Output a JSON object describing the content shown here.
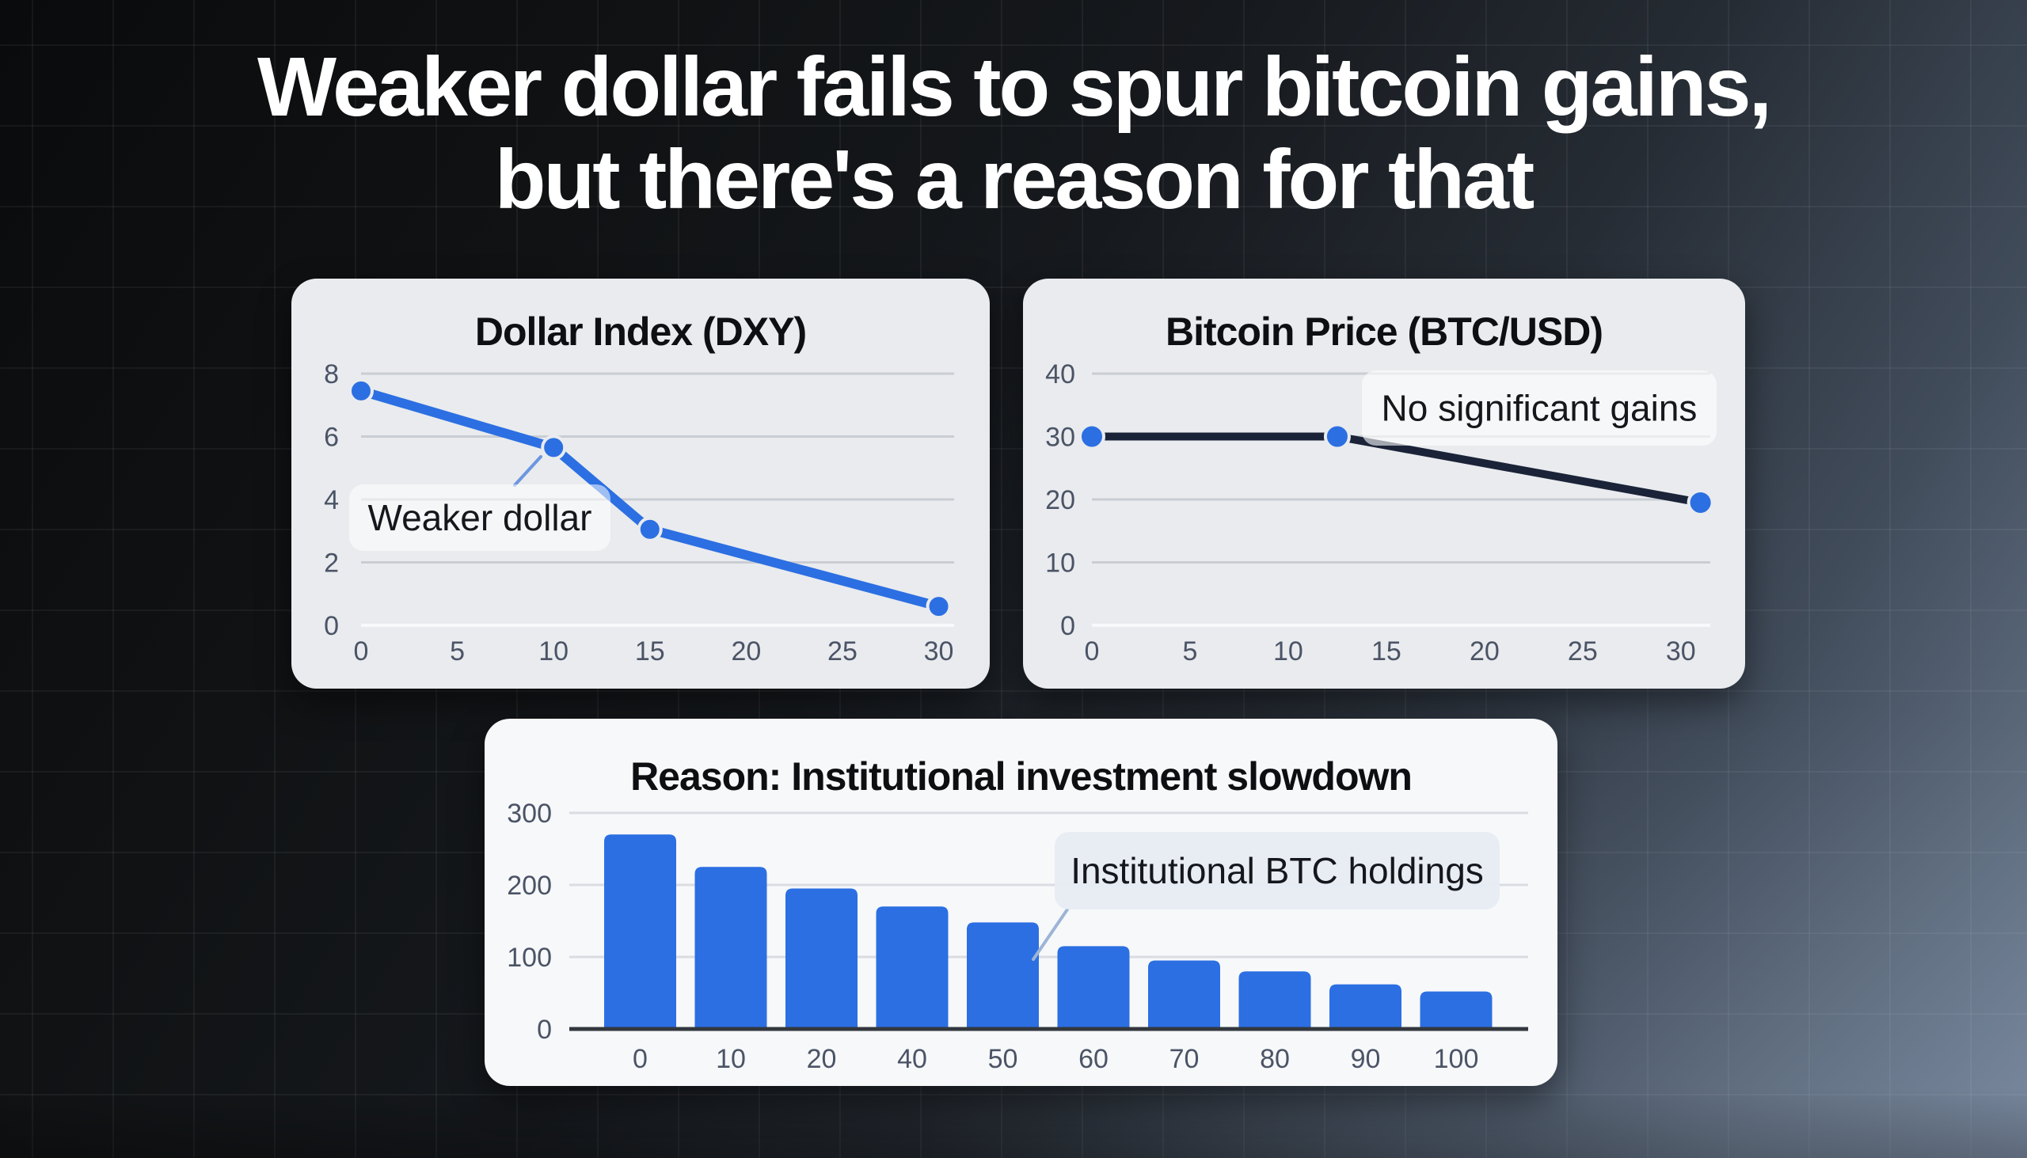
{
  "title": {
    "line1": "Weaker dollar fails to spur bitcoin gains,",
    "line2": "but there's a reason for that"
  },
  "colors": {
    "accent_blue": "#2c6fe2",
    "btc_line_navy": "#1b2338",
    "card_bg_gray": "#e9ebee",
    "card_bg_white": "#f7f8fa",
    "grid_gray": "#c9cdd3",
    "grid_light": "#d9dce1",
    "zero_line_white": "#f8f9fb",
    "axis_dark": "#33383f",
    "tick_text": "#4b5466",
    "title_white": "#ffffff"
  },
  "chart_data": [
    {
      "type": "line",
      "title": "Dollar Index (DXY)",
      "x": [
        0,
        10,
        15,
        30
      ],
      "values": [
        7.45,
        5.65,
        3.05,
        0.6
      ],
      "xlim": [
        0,
        30.8
      ],
      "ylim": [
        0,
        8
      ],
      "x_ticks": [
        0,
        5,
        10,
        15,
        20,
        25,
        30
      ],
      "y_ticks": [
        0,
        2,
        4,
        6,
        8
      ],
      "grid": "horizontal",
      "legend": "none",
      "line_color": "#2c6fe2",
      "marker_color": "#2c6fe2",
      "annotation": {
        "text": "Weaker dollar"
      }
    },
    {
      "type": "line",
      "title": "Bitcoin Price (BTC/USD)",
      "x": [
        0,
        12.5,
        31
      ],
      "values": [
        30,
        30,
        19.5
      ],
      "xlim": [
        0,
        31.5
      ],
      "ylim": [
        0,
        40
      ],
      "x_ticks": [
        0,
        5,
        10,
        15,
        20,
        25,
        30
      ],
      "y_ticks": [
        0,
        10,
        20,
        30,
        40
      ],
      "grid": "horizontal",
      "legend": "none",
      "line_color": "#1b2338",
      "marker_color": "#2c6fe2",
      "annotation": {
        "text": "No significant gains"
      }
    },
    {
      "type": "bar",
      "title": "Reason: Institutional investment slowdown",
      "categories": [
        "0",
        "10",
        "20",
        "40",
        "50",
        "60",
        "70",
        "80",
        "90",
        "100"
      ],
      "values": [
        270,
        225,
        195,
        170,
        148,
        115,
        95,
        80,
        62,
        52
      ],
      "ylim": [
        0,
        300
      ],
      "y_ticks": [
        0,
        100,
        200,
        300
      ],
      "grid": "horizontal",
      "legend": "none",
      "bar_color": "#2c6fe2",
      "annotation": {
        "text": "Institutional BTC holdings"
      }
    }
  ]
}
